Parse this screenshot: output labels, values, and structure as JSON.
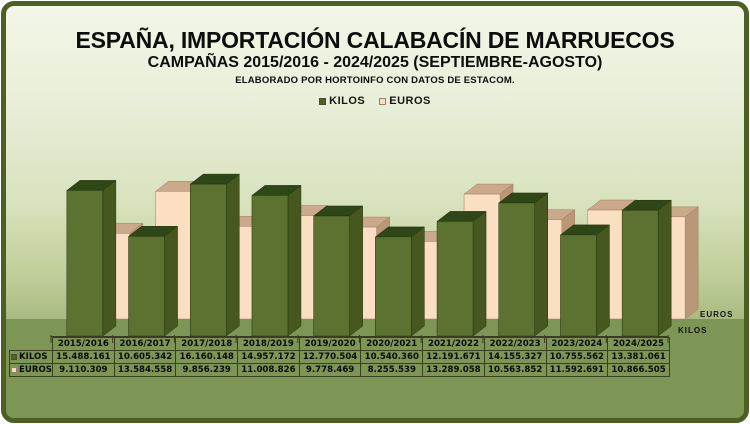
{
  "header": {
    "title": "ESPAÑA, IMPORTACIÓN CALABACÍN DE MARRUECOS",
    "subtitle": "CAMPAÑAS 2015/2016 - 2024/2025 (SEPTIEMBRE-AGOSTO)",
    "credit": "ELABORADO POR HORTOINFO CON DATOS DE ESTACOM."
  },
  "legend": {
    "items": [
      {
        "label": "KILOS",
        "swatch_color": "#4e6126"
      },
      {
        "label": "EUROS",
        "swatch_color": "#f9ddc1"
      }
    ]
  },
  "right_axis_labels": {
    "top": "EUROS",
    "bottom": "KILOS"
  },
  "chart_data": {
    "type": "bar",
    "style": "3d-depth-rows",
    "title": "ESPAÑA, IMPORTACIÓN CALABACÍN DE MARRUECOS",
    "subtitle": "CAMPAÑAS 2015/2016 - 2024/2025 (SEPTIEMBRE-AGOSTO)",
    "categories": [
      "2015/2016",
      "2016/2017",
      "2017/2018",
      "2018/2019",
      "2019/2020",
      "2020/2021",
      "2021/2022",
      "2022/2023",
      "2023/2024",
      "2024/2025"
    ],
    "series": [
      {
        "name": "KILOS",
        "row": "front",
        "values": [
          15488161,
          10605342,
          16160148,
          14957172,
          12770504,
          10540360,
          12191671,
          14155327,
          10755562,
          13381061
        ],
        "colors": {
          "front": "#5b7231",
          "top": "#2f4716",
          "side": "#46581f",
          "edge": "#22340c"
        }
      },
      {
        "name": "EUROS",
        "row": "back",
        "values": [
          9110309,
          13584558,
          9856239,
          11008826,
          9778469,
          8255539,
          13289058,
          10563852,
          11592691,
          10866505
        ],
        "colors": {
          "front": "#fadfc3",
          "top": "#cda98b",
          "side": "#bb9677",
          "edge": "#9a7e63"
        }
      }
    ],
    "xlabel": "",
    "ylabel": "",
    "ylim": [
      0,
      17500000
    ],
    "value_axis_visible": false,
    "grid": false,
    "legend_position": "top"
  },
  "table": {
    "corner_label": "",
    "columns": [
      "2015/2016",
      "2016/2017",
      "2017/2018",
      "2018/2019",
      "2019/2020",
      "2020/2021",
      "2021/2022",
      "2022/2023",
      "2023/2024",
      "2024/2025"
    ],
    "row_labels": [
      "KILOS",
      "EUROS"
    ],
    "rows": [
      [
        "15.488.161",
        "10.605.342",
        "16.160.148",
        "14.957.172",
        "12.770.504",
        "10.540.360",
        "12.191.671",
        "14.155.327",
        "10.755.562",
        "13.381.061"
      ],
      [
        "9.110.309",
        "13.584.558",
        "9.856.239",
        "11.008.826",
        "9.778.469",
        "8.255.539",
        "13.289.058",
        "10.563.852",
        "11.592.691",
        "10.866.505"
      ]
    ],
    "row_swatch_colors": [
      "#4e6126",
      "#f9ddc1"
    ]
  },
  "colors": {
    "frame_border": "#4c6023",
    "background_top": "#f2f6e8",
    "background_bottom": "#a9bb82",
    "floor_band": "#7d9655",
    "axis": "#3a3a28",
    "text": "#0d0d0d"
  }
}
